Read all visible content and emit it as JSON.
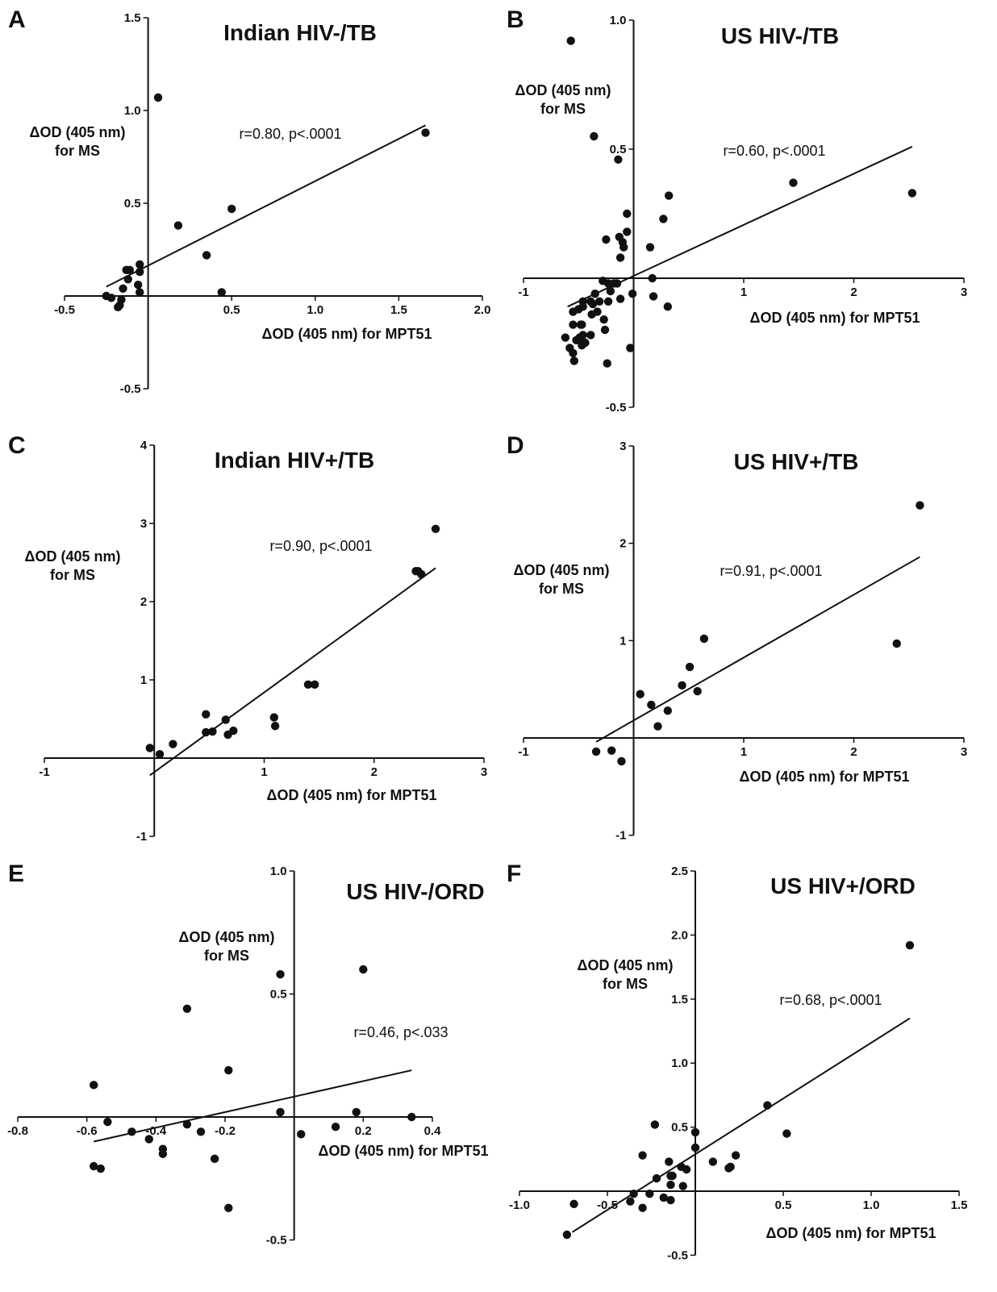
{
  "chart_data": [
    {
      "panel": "A",
      "type": "scatter",
      "title": "Indian HIV-/TB",
      "xlabel": "ΔOD (405 nm) for MPT51",
      "ylabel": [
        "ΔOD (405 nm)",
        "for MS"
      ],
      "annotation": "r=0.80, p<.0001",
      "xlim": [
        -0.5,
        2.0
      ],
      "ylim": [
        -0.5,
        1.5
      ],
      "xticks": [
        {
          "v": -0.5,
          "label": "-0.5"
        },
        {
          "v": 0.5,
          "label": "0.5"
        },
        {
          "v": 1.0,
          "label": "1.0"
        },
        {
          "v": 1.5,
          "label": "1.5"
        },
        {
          "v": 2.0,
          "label": "2.0"
        }
      ],
      "yticks": [
        {
          "v": -0.5,
          "label": "-0.5"
        },
        {
          "v": 0.5,
          "label": "0.5"
        },
        {
          "v": 1.0,
          "label": "1.0"
        },
        {
          "v": 1.5,
          "label": "1.5"
        }
      ],
      "points": [
        [
          0.06,
          1.07
        ],
        [
          0.18,
          0.38
        ],
        [
          0.35,
          0.22
        ],
        [
          0.44,
          0.02
        ],
        [
          0.5,
          0.47
        ],
        [
          1.66,
          0.88
        ],
        [
          -0.05,
          0.17
        ],
        [
          -0.05,
          0.13
        ],
        [
          -0.06,
          0.06
        ],
        [
          -0.05,
          0.02
        ],
        [
          -0.11,
          0.14
        ],
        [
          -0.12,
          0.09
        ],
        [
          -0.13,
          0.14
        ],
        [
          -0.15,
          0.04
        ],
        [
          -0.16,
          -0.02
        ],
        [
          -0.17,
          -0.05
        ],
        [
          -0.18,
          -0.06
        ],
        [
          -0.22,
          -0.01
        ],
        [
          -0.25,
          0.0
        ]
      ],
      "fit": [
        [
          -0.25,
          0.05
        ],
        [
          1.66,
          0.92
        ]
      ]
    },
    {
      "panel": "B",
      "type": "scatter",
      "title": "US HIV-/TB",
      "xlabel": "ΔOD (405 nm) for MPT51",
      "ylabel": [
        "ΔOD (405 nm)",
        "for MS"
      ],
      "annotation": "r=0.60, p<.0001",
      "xlim": [
        -1,
        3
      ],
      "ylim": [
        -0.5,
        1.0
      ],
      "xticks": [
        {
          "v": -1,
          "label": "-1"
        },
        {
          "v": 1,
          "label": "1"
        },
        {
          "v": 2,
          "label": "2"
        },
        {
          "v": 3,
          "label": "3"
        }
      ],
      "yticks": [
        {
          "v": -0.5,
          "label": "-0.5"
        },
        {
          "v": 0.5,
          "label": "0.5"
        },
        {
          "v": 1.0,
          "label": "1.0"
        }
      ],
      "points": [
        [
          -0.57,
          0.92
        ],
        [
          -0.36,
          0.55
        ],
        [
          -0.14,
          0.46
        ],
        [
          1.45,
          0.37
        ],
        [
          2.53,
          0.33
        ],
        [
          0.32,
          0.32
        ],
        [
          -0.06,
          0.25
        ],
        [
          0.27,
          0.23
        ],
        [
          -0.25,
          0.15
        ],
        [
          -0.13,
          0.16
        ],
        [
          -0.06,
          0.18
        ],
        [
          -0.1,
          0.14
        ],
        [
          -0.09,
          0.12
        ],
        [
          0.15,
          0.12
        ],
        [
          -0.12,
          0.08
        ],
        [
          0.17,
          0.0
        ],
        [
          -0.28,
          -0.01
        ],
        [
          -0.23,
          -0.02
        ],
        [
          -0.18,
          -0.02
        ],
        [
          -0.15,
          -0.02
        ],
        [
          -0.21,
          -0.05
        ],
        [
          -0.35,
          -0.06
        ],
        [
          -0.01,
          -0.06
        ],
        [
          -0.46,
          -0.09
        ],
        [
          -0.39,
          -0.09
        ],
        [
          -0.31,
          -0.09
        ],
        [
          -0.5,
          -0.12
        ],
        [
          -0.46,
          -0.11
        ],
        [
          -0.37,
          -0.1
        ],
        [
          -0.23,
          -0.09
        ],
        [
          -0.12,
          -0.08
        ],
        [
          0.18,
          -0.07
        ],
        [
          0.31,
          -0.11
        ],
        [
          -0.38,
          -0.14
        ],
        [
          -0.33,
          -0.13
        ],
        [
          -0.55,
          -0.13
        ],
        [
          -0.27,
          -0.16
        ],
        [
          -0.55,
          -0.18
        ],
        [
          -0.48,
          -0.18
        ],
        [
          -0.47,
          -0.18
        ],
        [
          -0.26,
          -0.2
        ],
        [
          -0.39,
          -0.22
        ],
        [
          -0.49,
          -0.23
        ],
        [
          -0.52,
          -0.24
        ],
        [
          -0.46,
          -0.22
        ],
        [
          -0.62,
          -0.23
        ],
        [
          -0.58,
          -0.27
        ],
        [
          -0.47,
          -0.26
        ],
        [
          -0.44,
          -0.25
        ],
        [
          -0.03,
          -0.27
        ],
        [
          -0.55,
          -0.29
        ],
        [
          -0.54,
          -0.32
        ],
        [
          -0.24,
          -0.33
        ]
      ],
      "fit": [
        [
          -0.6,
          -0.11
        ],
        [
          2.53,
          0.51
        ]
      ]
    },
    {
      "panel": "C",
      "type": "scatter",
      "title": "Indian HIV+/TB",
      "xlabel": "ΔOD (405 nm) for MPT51",
      "ylabel": [
        "ΔOD (405 nm)",
        "for MS"
      ],
      "annotation": "r=0.90, p<.0001",
      "xlim": [
        -1,
        3
      ],
      "ylim": [
        -1,
        4
      ],
      "xticks": [
        {
          "v": -1,
          "label": "-1"
        },
        {
          "v": 1,
          "label": "1"
        },
        {
          "v": 2,
          "label": "2"
        },
        {
          "v": 3,
          "label": "3"
        }
      ],
      "yticks": [
        {
          "v": -1,
          "label": "-1"
        },
        {
          "v": 1,
          "label": "1"
        },
        {
          "v": 2,
          "label": "2"
        },
        {
          "v": 3,
          "label": "3"
        },
        {
          "v": 4,
          "label": "4"
        }
      ],
      "points": [
        [
          2.56,
          2.93
        ],
        [
          2.38,
          2.39
        ],
        [
          2.4,
          2.39
        ],
        [
          2.43,
          2.35
        ],
        [
          1.4,
          0.94
        ],
        [
          1.46,
          0.94
        ],
        [
          1.09,
          0.52
        ],
        [
          1.1,
          0.41
        ],
        [
          0.65,
          0.49
        ],
        [
          0.72,
          0.35
        ],
        [
          0.67,
          0.3
        ],
        [
          0.47,
          0.56
        ],
        [
          0.47,
          0.33
        ],
        [
          0.53,
          0.34
        ],
        [
          0.17,
          0.18
        ],
        [
          -0.04,
          0.13
        ],
        [
          0.05,
          0.05
        ]
      ],
      "fit": [
        [
          -0.04,
          -0.22
        ],
        [
          2.56,
          2.43
        ]
      ]
    },
    {
      "panel": "D",
      "type": "scatter",
      "title": "US HIV+/TB",
      "xlabel": "ΔOD (405 nm) for MPT51",
      "ylabel": [
        "ΔOD (405 nm)",
        "for MS"
      ],
      "annotation": "r=0.91, p<.0001",
      "xlim": [
        -1,
        3
      ],
      "ylim": [
        -1,
        3
      ],
      "xticks": [
        {
          "v": -1,
          "label": "-1"
        },
        {
          "v": 1,
          "label": "1"
        },
        {
          "v": 2,
          "label": "2"
        },
        {
          "v": 3,
          "label": "3"
        }
      ],
      "yticks": [
        {
          "v": -1,
          "label": "-1"
        },
        {
          "v": 1,
          "label": "1"
        },
        {
          "v": 2,
          "label": "2"
        },
        {
          "v": 3,
          "label": "3"
        }
      ],
      "points": [
        [
          2.6,
          2.39
        ],
        [
          2.39,
          0.97
        ],
        [
          0.64,
          1.02
        ],
        [
          0.51,
          0.73
        ],
        [
          0.44,
          0.54
        ],
        [
          0.58,
          0.48
        ],
        [
          0.06,
          0.45
        ],
        [
          0.16,
          0.34
        ],
        [
          0.31,
          0.28
        ],
        [
          0.22,
          0.12
        ],
        [
          -0.2,
          -0.13
        ],
        [
          -0.34,
          -0.14
        ],
        [
          -0.11,
          -0.24
        ]
      ],
      "fit": [
        [
          -0.34,
          -0.04
        ],
        [
          2.6,
          1.86
        ]
      ]
    },
    {
      "panel": "E",
      "type": "scatter",
      "title": "US HIV-/ORD",
      "xlabel": "ΔOD (405 nm) for MPT51",
      "ylabel": [
        "ΔOD (405 nm)",
        "for MS"
      ],
      "annotation": "r=0.46, p<.033",
      "xlim": [
        -0.8,
        0.4
      ],
      "ylim": [
        -0.5,
        1.0
      ],
      "xticks": [
        {
          "v": -0.8,
          "label": "-0.8"
        },
        {
          "v": -0.6,
          "label": "-0.6"
        },
        {
          "v": -0.4,
          "label": "-0.4"
        },
        {
          "v": -0.2,
          "label": "-0.2"
        },
        {
          "v": 0.2,
          "label": "0.2"
        },
        {
          "v": 0.4,
          "label": "0.4"
        }
      ],
      "yticks": [
        {
          "v": -0.5,
          "label": "-0.5"
        },
        {
          "v": 0.5,
          "label": "0.5"
        },
        {
          "v": 1.0,
          "label": "1.0"
        }
      ],
      "points": [
        [
          -0.04,
          0.58
        ],
        [
          0.2,
          0.6
        ],
        [
          -0.31,
          0.44
        ],
        [
          -0.19,
          0.19
        ],
        [
          -0.58,
          0.13
        ],
        [
          -0.04,
          0.02
        ],
        [
          0.18,
          0.02
        ],
        [
          0.34,
          0.0
        ],
        [
          -0.54,
          -0.02
        ],
        [
          -0.31,
          -0.03
        ],
        [
          0.12,
          -0.04
        ],
        [
          -0.47,
          -0.06
        ],
        [
          -0.27,
          -0.06
        ],
        [
          0.02,
          -0.07
        ],
        [
          -0.42,
          -0.09
        ],
        [
          -0.38,
          -0.13
        ],
        [
          -0.38,
          -0.15
        ],
        [
          -0.23,
          -0.17
        ],
        [
          -0.58,
          -0.2
        ],
        [
          -0.56,
          -0.21
        ],
        [
          -0.19,
          -0.37
        ]
      ],
      "fit": [
        [
          -0.58,
          -0.1
        ],
        [
          0.34,
          0.19
        ]
      ]
    },
    {
      "panel": "F",
      "type": "scatter",
      "title": "US HIV+/ORD",
      "xlabel": "ΔOD (405 nm) for MPT51",
      "ylabel": [
        "ΔOD (405 nm)",
        "for MS"
      ],
      "annotation": "r=0.68, p<.0001",
      "xlim": [
        -1.0,
        1.5
      ],
      "ylim": [
        -0.5,
        2.5
      ],
      "xticks": [
        {
          "v": -1.0,
          "label": "-1.0"
        },
        {
          "v": -0.5,
          "label": "-0.5"
        },
        {
          "v": 0.5,
          "label": "0.5"
        },
        {
          "v": 1.0,
          "label": "1.0"
        },
        {
          "v": 1.5,
          "label": "1.5"
        }
      ],
      "yticks": [
        {
          "v": -0.5,
          "label": "-0.5"
        },
        {
          "v": 0.5,
          "label": "0.5"
        },
        {
          "v": 1.0,
          "label": "1.0"
        },
        {
          "v": 1.5,
          "label": "1.5"
        },
        {
          "v": 2.0,
          "label": "2.0"
        },
        {
          "v": 2.5,
          "label": "2.5"
        }
      ],
      "points": [
        [
          1.22,
          1.92
        ],
        [
          0.41,
          0.67
        ],
        [
          0.52,
          0.45
        ],
        [
          0.0,
          0.46
        ],
        [
          0.0,
          0.34
        ],
        [
          0.23,
          0.28
        ],
        [
          0.1,
          0.23
        ],
        [
          0.19,
          0.18
        ],
        [
          0.2,
          0.19
        ],
        [
          -0.05,
          0.17
        ],
        [
          -0.08,
          0.19
        ],
        [
          -0.15,
          0.23
        ],
        [
          -0.23,
          0.52
        ],
        [
          -0.3,
          0.28
        ],
        [
          -0.22,
          0.1
        ],
        [
          -0.13,
          0.12
        ],
        [
          -0.14,
          0.12
        ],
        [
          -0.14,
          0.05
        ],
        [
          -0.07,
          0.04
        ],
        [
          -0.26,
          -0.02
        ],
        [
          -0.18,
          -0.05
        ],
        [
          -0.14,
          -0.07
        ],
        [
          -0.35,
          -0.02
        ],
        [
          -0.3,
          -0.13
        ],
        [
          -0.37,
          -0.08
        ],
        [
          -0.69,
          -0.1
        ],
        [
          -0.73,
          -0.34
        ]
      ],
      "fit": [
        [
          -0.7,
          -0.32
        ],
        [
          1.22,
          1.35
        ]
      ]
    }
  ]
}
